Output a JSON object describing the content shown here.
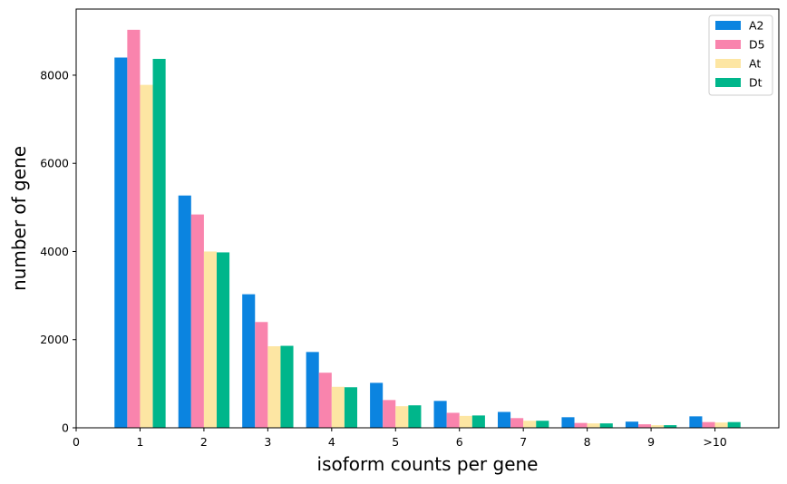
{
  "chart_data": {
    "type": "bar",
    "title": "",
    "xlabel": "isoform counts per gene",
    "ylabel": "number of gene",
    "x_ticks": [
      "0",
      "1",
      "2",
      "3",
      "4",
      "5",
      "6",
      "7",
      "8",
      "9",
      ">10"
    ],
    "categories": [
      "1",
      "2",
      "3",
      "4",
      "5",
      "6",
      "7",
      "8",
      "9",
      ">10"
    ],
    "y_ticks": [
      "0",
      "2000",
      "4000",
      "6000",
      "8000"
    ],
    "ylim": [
      0,
      9500
    ],
    "xlim": [
      0,
      11
    ],
    "grid": false,
    "legend_position": "top-right",
    "series": [
      {
        "name": "A2",
        "color": "#0b84e0",
        "values": [
          8400,
          5270,
          3030,
          1720,
          1020,
          610,
          360,
          240,
          140,
          260
        ]
      },
      {
        "name": "D5",
        "color": "#f984ad",
        "values": [
          9030,
          4840,
          2400,
          1250,
          630,
          340,
          220,
          110,
          80,
          130
        ]
      },
      {
        "name": "At",
        "color": "#fde6a3",
        "values": [
          7780,
          4000,
          1850,
          930,
          490,
          270,
          160,
          100,
          60,
          120
        ]
      },
      {
        "name": "Dt",
        "color": "#00b68b",
        "values": [
          8370,
          3980,
          1860,
          920,
          510,
          280,
          160,
          100,
          60,
          130
        ]
      }
    ]
  }
}
